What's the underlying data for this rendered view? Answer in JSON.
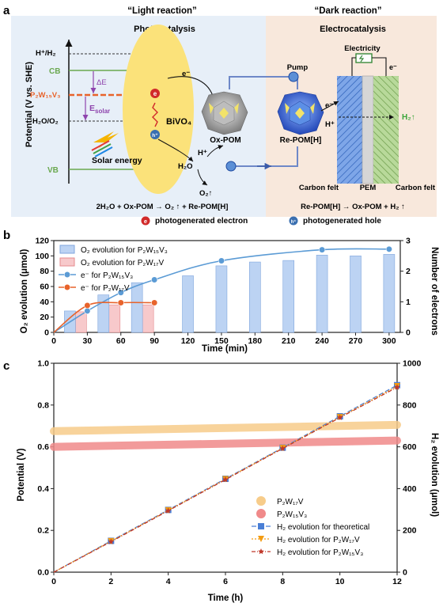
{
  "colors": {
    "light_bg": "#e7eff8",
    "dark_bg": "#f8e8dc",
    "bivo4_fill": "#fbe27a",
    "cb_vb_line": "#6aa84f",
    "p2w_line": "#e8632b",
    "arrow_purple": "#8e44ad",
    "blue_bar": "#bcd3f3",
    "pink_bar": "#f7c9cb",
    "blue_series": "#5b9bd5",
    "orange_series": "#e8632b",
    "p2w17v_band": "#f7cc8a",
    "p2w15v3_band": "#f08a8a",
    "theory_line": "#4a7fd6",
    "p2w17v_line": "#f39c12",
    "p2w15v3_line": "#c0392b"
  },
  "panel_a": {
    "label": "a",
    "light_title": "“Light reaction”",
    "dark_title": "“Dark reaction”",
    "photocatalysis": "Photocatalysis",
    "electrocatalysis": "Electrocatalysis",
    "yaxis": "Potential (V vs. SHE)",
    "h_level": "H⁺/H₂",
    "cb": "CB",
    "p2w_level": "P₂W₁₅V₃",
    "delta_e": "ΔE",
    "e_solar": "E",
    "e_solar_sub": "solar",
    "h2o_level": "H₂O/O₂",
    "bivo4": "BiVO₄",
    "solar": "Solar energy",
    "vb": "VB",
    "e_minus": "e⁻",
    "h_plus": "h⁺",
    "hplus": "H⁺",
    "h2o": "H₂O",
    "o2": "O₂↑",
    "ox_pom": "Ox-POM",
    "re_pom": "Re-POM[H]",
    "pump": "Pump",
    "electricity": "Electricity",
    "h2": "H₂↑",
    "carbon_felt_left": "Carbon felt",
    "pem": "PEM",
    "carbon_felt_right": "Carbon felt",
    "eq_light": "2H₂O + Ox-POM → O₂ ↑ + Re-POM[H]",
    "eq_dark": "Re-POM[H] → Ox-POM + H₂ ↑",
    "legend_e": "photogenerated electron",
    "legend_h": "photogenerated hole",
    "glyph_e": "e",
    "glyph_h": "h⁺"
  },
  "panel_b": {
    "label": "b",
    "ylabel_left": "O₂ evolution (μmol)",
    "ylabel_right": "Number of electrons",
    "xlabel": "Time (min)",
    "legend": [
      "O₂ evolution for P₂W₁₅V₃",
      "O₂ evolution for P₂W₁₇V",
      "e⁻ for P₂W₁₅V₃",
      "e⁻ for P₂W₁₇V"
    ]
  },
  "panel_c": {
    "label": "c",
    "ylabel_left": "Potential (V)",
    "ylabel_right": "H₂ evolution (μmol)",
    "xlabel": "Time (h)",
    "legend": [
      "P₂W₁₇V",
      "P₂W₁₅V₃",
      "H₂ evolution for theoretical",
      "H₂ evolution for P₂W₁₇V",
      "H₂ evolution for P₂W₁₅V₃"
    ]
  },
  "chart_data": [
    {
      "type": "bar",
      "panel": "b",
      "x": [
        30,
        60,
        90,
        120,
        150,
        180,
        210,
        240,
        270,
        300
      ],
      "xlim": [
        0,
        310
      ],
      "ylim": [
        0,
        120
      ],
      "y2lim": [
        0,
        3
      ],
      "xticks": [
        0,
        30,
        60,
        90,
        120,
        150,
        180,
        210,
        240,
        270,
        300
      ],
      "yticks": [
        0,
        20,
        40,
        60,
        80,
        100,
        120
      ],
      "y2ticks": [
        0,
        1,
        2,
        3
      ],
      "series": [
        {
          "name": "O₂ evolution for P₂W₁₅V₃",
          "kind": "bar",
          "x": [
            30,
            60,
            90,
            120,
            150,
            180,
            210,
            240,
            270,
            300
          ],
          "values": [
            28,
            49,
            65,
            74,
            87,
            92,
            94,
            101,
            100,
            102
          ]
        },
        {
          "name": "O₂ evolution for P₂W₁₇V",
          "kind": "bar",
          "x": [
            30,
            60,
            90
          ],
          "values": [
            27,
            36,
            36
          ]
        },
        {
          "name": "e⁻ for P₂W₁₅V₃",
          "kind": "line",
          "axis": "right",
          "x": [
            30,
            60,
            90,
            150,
            240,
            300
          ],
          "values": [
            0.7,
            1.3,
            1.72,
            2.34,
            2.7,
            2.72
          ]
        },
        {
          "name": "e⁻ for P₂W₁₇V",
          "kind": "line",
          "axis": "right",
          "x": [
            30,
            60,
            90
          ],
          "values": [
            0.88,
            0.97,
            0.97
          ]
        }
      ]
    },
    {
      "type": "line",
      "panel": "c",
      "xlim": [
        0,
        12
      ],
      "ylim": [
        0,
        1.0
      ],
      "y2lim": [
        0,
        1000
      ],
      "xticks": [
        0,
        2,
        4,
        6,
        8,
        10,
        12
      ],
      "yticks": [
        0.0,
        0.2,
        0.4,
        0.6,
        0.8,
        1.0
      ],
      "y2ticks": [
        0,
        200,
        400,
        600,
        800,
        1000
      ],
      "series": [
        {
          "name": "P₂W₁₇V",
          "kind": "band",
          "axis": "left",
          "x": [
            0,
            12
          ],
          "values": [
            0.675,
            0.705
          ]
        },
        {
          "name": "P₂W₁₅V₃",
          "kind": "band",
          "axis": "left",
          "x": [
            0,
            12
          ],
          "values": [
            0.6,
            0.63
          ]
        },
        {
          "name": "H₂ evolution for theoretical",
          "kind": "line",
          "axis": "right",
          "x": [
            0,
            2,
            4,
            6,
            8,
            10,
            12
          ],
          "values": [
            0,
            150,
            298,
            447,
            596,
            746,
            895
          ]
        },
        {
          "name": "H₂ evolution for P₂W₁₇V",
          "kind": "line",
          "axis": "right",
          "x": [
            0,
            2,
            4,
            6,
            8,
            10,
            12
          ],
          "values": [
            0,
            148,
            296,
            445,
            594,
            742,
            890
          ]
        },
        {
          "name": "H₂ evolution for P₂W₁₅V₃",
          "kind": "line",
          "axis": "right",
          "x": [
            0,
            2,
            4,
            6,
            8,
            10,
            12
          ],
          "values": [
            0,
            146,
            294,
            443,
            592,
            740,
            885
          ]
        }
      ]
    }
  ]
}
